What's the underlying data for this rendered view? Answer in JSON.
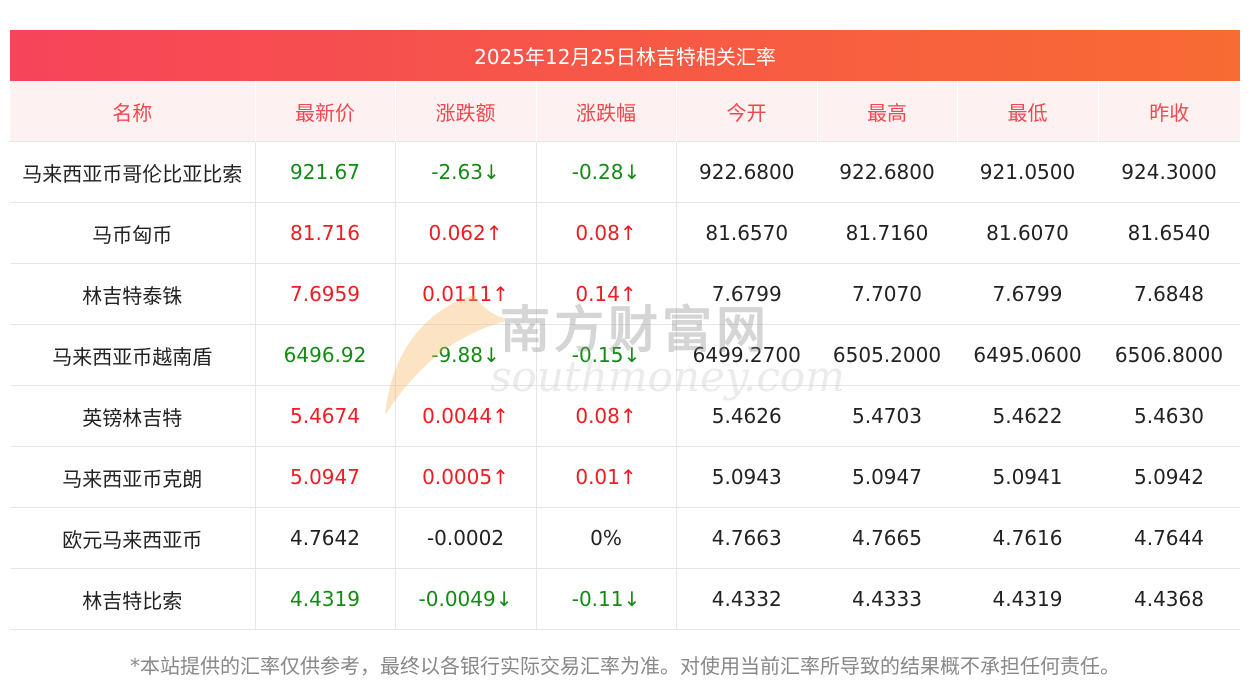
{
  "title": "2025年12月25日林吉特相关汇率",
  "columns": [
    "名称",
    "最新价",
    "涨跌额",
    "涨跌幅",
    "今开",
    "最高",
    "最低",
    "昨收"
  ],
  "rows": [
    {
      "name": "马来西亚币哥伦比亚比索",
      "latest": "921.67",
      "change": "-2.63↓",
      "pct": "-0.28↓",
      "open": "922.6800",
      "high": "922.6800",
      "low": "921.0500",
      "prev": "924.3000",
      "trend": "down"
    },
    {
      "name": "马币匈币",
      "latest": "81.716",
      "change": "0.062↑",
      "pct": "0.08↑",
      "open": "81.6570",
      "high": "81.7160",
      "low": "81.6070",
      "prev": "81.6540",
      "trend": "up"
    },
    {
      "name": "林吉特泰铢",
      "latest": "7.6959",
      "change": "0.0111↑",
      "pct": "0.14↑",
      "open": "7.6799",
      "high": "7.7070",
      "low": "7.6799",
      "prev": "7.6848",
      "trend": "up"
    },
    {
      "name": "马来西亚币越南盾",
      "latest": "6496.92",
      "change": "-9.88↓",
      "pct": "-0.15↓",
      "open": "6499.2700",
      "high": "6505.2000",
      "low": "6495.0600",
      "prev": "6506.8000",
      "trend": "down"
    },
    {
      "name": "英镑林吉特",
      "latest": "5.4674",
      "change": "0.0044↑",
      "pct": "0.08↑",
      "open": "5.4626",
      "high": "5.4703",
      "low": "5.4622",
      "prev": "5.4630",
      "trend": "up"
    },
    {
      "name": "马来西亚币克朗",
      "latest": "5.0947",
      "change": "0.0005↑",
      "pct": "0.01↑",
      "open": "5.0943",
      "high": "5.0947",
      "low": "5.0941",
      "prev": "5.0942",
      "trend": "up"
    },
    {
      "name": "欧元马来西亚币",
      "latest": "4.7642",
      "change": "-0.0002",
      "pct": "0%",
      "open": "4.7663",
      "high": "4.7665",
      "low": "4.7616",
      "prev": "4.7644",
      "trend": "flat"
    },
    {
      "name": "林吉特比索",
      "latest": "4.4319",
      "change": "-0.0049↓",
      "pct": "-0.11↓",
      "open": "4.4332",
      "high": "4.4333",
      "low": "4.4319",
      "prev": "4.4368",
      "trend": "down"
    }
  ],
  "colors": {
    "up": "#ee1d23",
    "down": "#148a16",
    "flat": "#222222",
    "header_text": "#f0484f"
  },
  "watermark": {
    "cn": "南方财富网",
    "en": "southmoney.com"
  },
  "footnote": "*本站提供的汇率仅供参考，最终以各银行实际交易汇率为准。对使用当前汇率所导致的结果概不承担任何责任。"
}
